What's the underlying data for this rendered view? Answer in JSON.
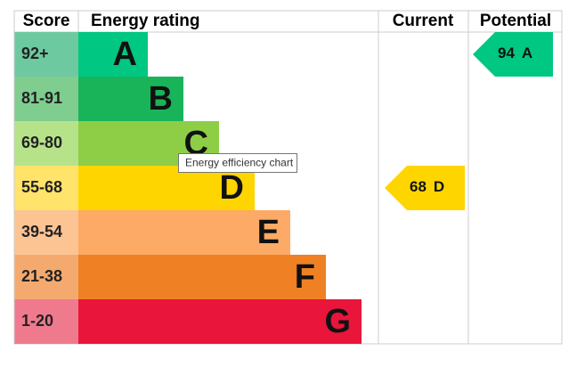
{
  "header": {
    "score": "Score",
    "rating": "Energy rating",
    "current": "Current",
    "potential": "Potential"
  },
  "bands": [
    {
      "score": "92+",
      "letter": "A",
      "color": "#00c781",
      "light": "#6dc9a0"
    },
    {
      "score": "81-91",
      "letter": "B",
      "color": "#19b459",
      "light": "#7fcd8f"
    },
    {
      "score": "69-80",
      "letter": "C",
      "color": "#8dce46",
      "light": "#b6e38a"
    },
    {
      "score": "55-68",
      "letter": "D",
      "color": "#ffd500",
      "light": "#ffe36b"
    },
    {
      "score": "39-54",
      "letter": "E",
      "color": "#fcaa65",
      "light": "#fdc493"
    },
    {
      "score": "21-38",
      "letter": "F",
      "color": "#ef8023",
      "light": "#f4aa6e"
    },
    {
      "score": "1-20",
      "letter": "G",
      "color": "#e9153b",
      "light": "#f07a8d"
    }
  ],
  "current": {
    "value": 68,
    "letter": "D"
  },
  "potential": {
    "value": 94,
    "letter": "A"
  },
  "tooltip": "Energy efficiency chart"
}
